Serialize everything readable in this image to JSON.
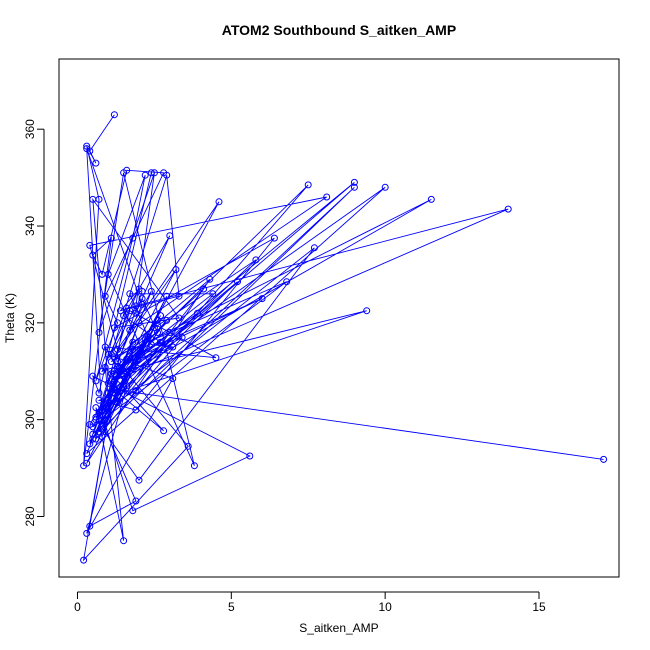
{
  "chart_data": {
    "type": "line",
    "title": "ATOM2 Southbound S_aitken_AMP",
    "xlabel": "S_aitken_AMP",
    "ylabel": "Theta (K)",
    "xlim": [
      -0.6,
      17.6
    ],
    "ylim": [
      267.5,
      374.5
    ],
    "x_ticks": [
      0,
      5,
      10,
      15
    ],
    "y_ticks": [
      280,
      300,
      320,
      340,
      360
    ],
    "grid": false,
    "legend": "none",
    "series_color": "#0000ff",
    "marker": "open-circle",
    "series": [
      {
        "x": [
          17.1,
          1.2,
          2.8,
          0.9,
          1.5,
          0.6,
          1.9,
          0.4,
          1.1,
          0.2,
          3.6,
          1.3,
          2.1,
          0.3,
          0.8,
          1.8,
          5.6,
          0.5,
          0.7,
          2.4,
          1.0,
          3.1,
          0.3,
          1.6,
          0.9,
          4.5,
          1.7,
          0.6,
          2.0,
          7.7,
          1.3,
          0.8,
          2.9,
          0.4,
          1.1,
          9.4,
          0.7,
          1.9,
          6.4,
          1.2,
          3.3,
          0.5,
          1.0,
          14.0,
          1.6,
          0.9,
          2.7,
          0.3,
          4.3,
          1.1,
          2.3,
          0.8,
          1.5,
          5.2,
          0.6,
          1.8,
          11.5,
          1.2,
          3.0,
          0.5,
          2.5,
          1.0,
          0.4,
          1.7,
          6.0,
          1.3,
          2.6,
          0.7,
          9.0,
          1.9,
          0.9,
          3.9,
          1.4,
          0.5,
          7.5,
          1.2,
          2.2,
          0.8,
          4.1,
          1.6,
          0.3,
          10.0,
          1.1,
          2.9,
          0.7,
          1.8,
          5.8,
          1.0,
          0.6,
          3.4,
          1.5,
          9.0,
          1.2,
          2.0,
          0.9,
          4.6,
          1.3,
          0.4,
          8.1,
          1.7,
          2.4,
          1.0,
          0.5,
          6.8,
          1.2,
          3.2,
          0.8,
          2.1
        ],
        "y": [
          291.8,
          306.2,
          297.7,
          310.8,
          275.0,
          302.5,
          283.2,
          278.0,
          304.5,
          271.0,
          294.5,
          312.0,
          323.8,
          356.0,
          301.0,
          281.2,
          292.5,
          309.0,
          305.5,
          351.0,
          313.5,
          308.5,
          276.5,
          307.0,
          315.0,
          312.8,
          322.5,
          300.0,
          287.5,
          335.5,
          303.5,
          298.0,
          325.5,
          295.0,
          309.5,
          322.5,
          304.0,
          302.0,
          337.5,
          319.0,
          321.0,
          345.5,
          307.5,
          343.5,
          323.0,
          301.0,
          321.5,
          291.0,
          329.0,
          312.0,
          317.0,
          296.5,
          309.0,
          328.5,
          300.5,
          314.5,
          345.5,
          308.0,
          318.0,
          296.0,
          319.0,
          305.5,
          299.0,
          313.0,
          325.0,
          311.0,
          320.5,
          297.5,
          348.0,
          306.0,
          302.5,
          322.0,
          310.5,
          297.0,
          348.5,
          309.5,
          316.5,
          300.0,
          327.0,
          312.5,
          293.0,
          348.0,
          308.0,
          320.5,
          301.5,
          316.0,
          333.0,
          304.5,
          296.0,
          317.0,
          310.0,
          349.0,
          306.5,
          320.0,
          301.0,
          345.0,
          314.5,
          336.0,
          346.0,
          318.5,
          326.5,
          304.0,
          298.5,
          328.5,
          313.0,
          331.0,
          302.0,
          326.5
        ]
      },
      {
        "x": [
          1.2,
          0.4,
          0.6,
          0.3,
          0.7,
          0.2,
          1.1,
          0.5,
          0.8,
          1.6,
          2.8,
          0.9,
          1.3,
          0.6,
          1.8,
          2.2,
          1.0,
          3.8,
          1.5,
          0.7,
          2.5,
          1.9,
          1.1,
          2.9,
          3.3,
          1.4,
          2.0,
          0.8,
          3.1,
          2.4,
          1.7,
          4.4,
          1.2,
          2.7,
          1.5,
          3.0,
          1.9,
          2.1,
          2.6,
          1.3
        ],
        "y": [
          363.0,
          355.5,
          353.0,
          356.5,
          345.5,
          290.5,
          337.5,
          334.0,
          330.0,
          351.5,
          351.0,
          325.5,
          320.0,
          308.0,
          337.5,
          350.5,
          330.0,
          290.5,
          351.0,
          318.0,
          351.0,
          323.5,
          313.5,
          350.5,
          325.5,
          322.5,
          327.0,
          310.0,
          315.0,
          315.5,
          326.0,
          326.0,
          310.0,
          316.0,
          321.5,
          338.0,
          322.0,
          325.0,
          318.0,
          305.0
        ]
      }
    ]
  }
}
